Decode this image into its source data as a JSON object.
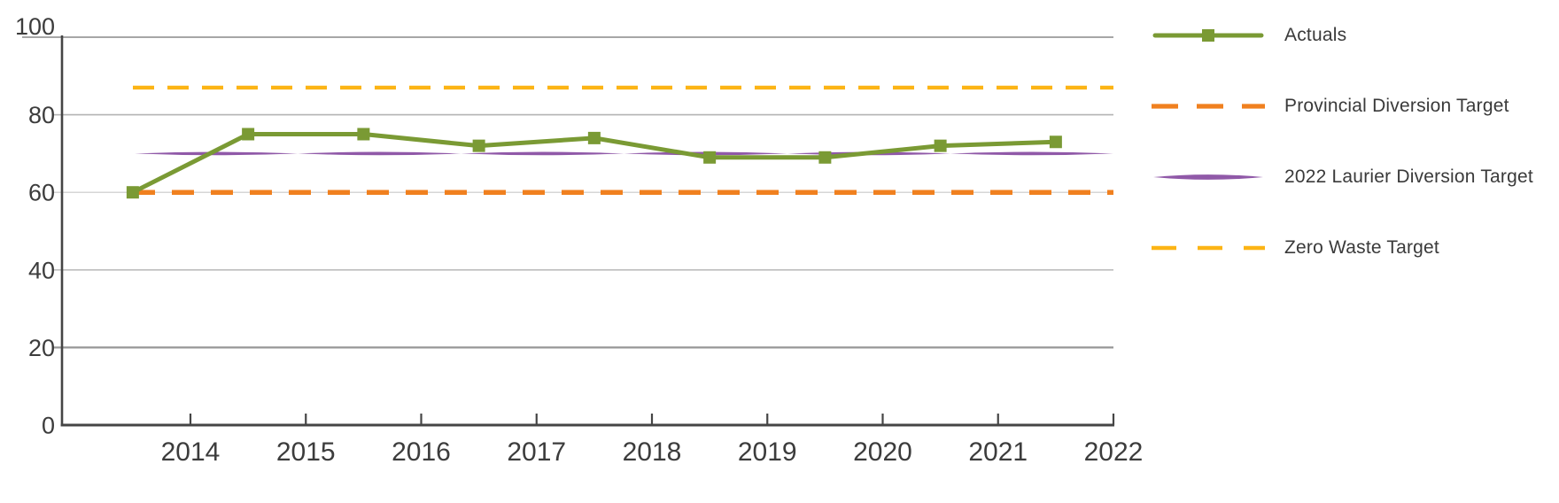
{
  "figure": {
    "background": "#ffffff"
  },
  "chart_data": {
    "type": "line",
    "title": "",
    "xlabel": "",
    "ylabel": "",
    "ylim": [
      0,
      100
    ],
    "y_ticks": [
      0,
      20,
      40,
      60,
      80,
      100
    ],
    "x_ticks": [
      2014,
      2015,
      2016,
      2017,
      2018,
      2019,
      2020,
      2021,
      2022
    ],
    "grid": true,
    "legend_position": "right",
    "x": [
      2013.5,
      2014.5,
      2015.5,
      2016.5,
      2017.5,
      2018.5,
      2019.5,
      2020.5,
      2021.5
    ],
    "series": [
      {
        "name": "Actuals",
        "color": "#7A9A34",
        "marker": "square",
        "values": [
          60,
          75,
          75,
          72,
          74,
          69,
          69,
          72,
          73
        ]
      }
    ],
    "targets": [
      {
        "name": "Provincial Diversion Target",
        "value": 60,
        "color": "#F0801F",
        "style": "dashed"
      },
      {
        "name": "2022 Laurier Diversion Target",
        "value": 70,
        "color": "#9059A8",
        "style": "tapered"
      },
      {
        "name": "Zero Waste Target",
        "value": 87,
        "color": "#FCB415",
        "style": "dashed"
      }
    ],
    "legend": [
      {
        "label": "Actuals",
        "color": "#7A9A34",
        "sample": "line-square-marker"
      },
      {
        "label": "Provincial Diversion Target",
        "color": "#F0801F",
        "sample": "dashed-line"
      },
      {
        "label": "2022 Laurier Diversion Target",
        "color": "#9059A8",
        "sample": "tapered-line"
      },
      {
        "label": "Zero Waste Target",
        "color": "#FCB415",
        "sample": "dashed-line"
      }
    ],
    "axis_color": "#454545",
    "gridline_color": "#b0b0b0",
    "label_color": "#3c3c3c"
  }
}
